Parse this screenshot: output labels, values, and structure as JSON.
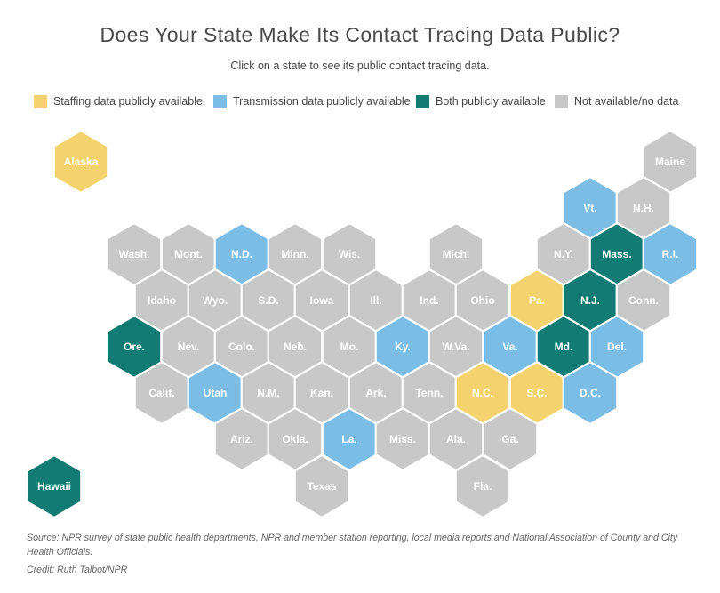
{
  "title": "Does Your State Make Its Contact Tracing Data Public?",
  "subtitle": "Click on a state to see its public contact tracing data.",
  "colors": {
    "staffing": "#f4d36e",
    "transmission": "#7cbde5",
    "both": "#127c74",
    "none": "#c8c8c8"
  },
  "legend": [
    {
      "key": "staffing",
      "label": "Staffing data publicly available"
    },
    {
      "key": "transmission",
      "label": "Transmission data publicly available"
    },
    {
      "key": "both",
      "label": "Both publicly available"
    },
    {
      "key": "none",
      "label": "Not available/no data"
    }
  ],
  "states": [
    {
      "label": "Alaska",
      "status": "staffing"
    },
    {
      "label": "Hawaii",
      "status": "both"
    },
    {
      "label": "Maine",
      "status": "none"
    },
    {
      "label": "Vt.",
      "status": "transmission"
    },
    {
      "label": "N.H.",
      "status": "none"
    },
    {
      "label": "Wash.",
      "status": "none"
    },
    {
      "label": "Mont.",
      "status": "none"
    },
    {
      "label": "N.D.",
      "status": "transmission"
    },
    {
      "label": "Minn.",
      "status": "none"
    },
    {
      "label": "Wis.",
      "status": "none"
    },
    {
      "label": "Mich.",
      "status": "none"
    },
    {
      "label": "N.Y.",
      "status": "none"
    },
    {
      "label": "Mass.",
      "status": "both"
    },
    {
      "label": "R.I.",
      "status": "transmission"
    },
    {
      "label": "Idaho",
      "status": "none"
    },
    {
      "label": "Wyo.",
      "status": "none"
    },
    {
      "label": "S.D.",
      "status": "none"
    },
    {
      "label": "Iowa",
      "status": "none"
    },
    {
      "label": "Ill.",
      "status": "none"
    },
    {
      "label": "Ind.",
      "status": "none"
    },
    {
      "label": "Ohio",
      "status": "none"
    },
    {
      "label": "Pa.",
      "status": "staffing"
    },
    {
      "label": "N.J.",
      "status": "both"
    },
    {
      "label": "Conn.",
      "status": "none"
    },
    {
      "label": "Ore.",
      "status": "both"
    },
    {
      "label": "Nev.",
      "status": "none"
    },
    {
      "label": "Colo.",
      "status": "none"
    },
    {
      "label": "Neb.",
      "status": "none"
    },
    {
      "label": "Mo.",
      "status": "none"
    },
    {
      "label": "Ky.",
      "status": "transmission"
    },
    {
      "label": "W.Va.",
      "status": "none"
    },
    {
      "label": "Va.",
      "status": "transmission"
    },
    {
      "label": "Md.",
      "status": "both"
    },
    {
      "label": "Del.",
      "status": "transmission"
    },
    {
      "label": "Calif.",
      "status": "none"
    },
    {
      "label": "Utah",
      "status": "transmission"
    },
    {
      "label": "N.M.",
      "status": "none"
    },
    {
      "label": "Kan.",
      "status": "none"
    },
    {
      "label": "Ark.",
      "status": "none"
    },
    {
      "label": "Tenn.",
      "status": "none"
    },
    {
      "label": "N.C.",
      "status": "staffing"
    },
    {
      "label": "S.C.",
      "status": "staffing"
    },
    {
      "label": "D.C.",
      "status": "transmission"
    },
    {
      "label": "Ariz.",
      "status": "none"
    },
    {
      "label": "Okla.",
      "status": "none"
    },
    {
      "label": "La.",
      "status": "transmission"
    },
    {
      "label": "Miss.",
      "status": "none"
    },
    {
      "label": "Ala.",
      "status": "none"
    },
    {
      "label": "Ga.",
      "status": "none"
    },
    {
      "label": "Texas",
      "status": "none"
    },
    {
      "label": "Fla.",
      "status": "none"
    }
  ],
  "source": "Source: NPR survey of state public health departments, NPR and member station reporting, local media reports and National Association of County and City Health Officials.",
  "credit": "Credit: Ruth Talbot/NPR"
}
